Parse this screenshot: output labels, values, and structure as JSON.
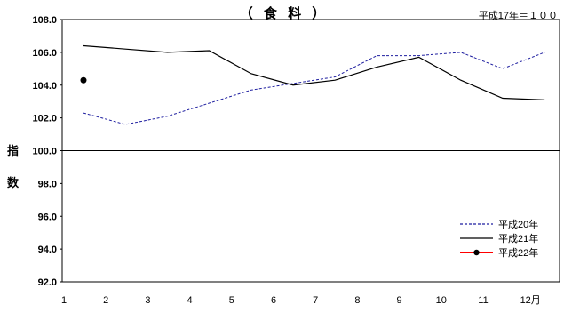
{
  "chart_data": {
    "type": "line",
    "title": "（ 食 料 ）",
    "note": "平成17年＝１００",
    "ylabel_top": "指",
    "ylabel_bottom": "数",
    "ylim": [
      92.0,
      108.0
    ],
    "yticks": [
      92.0,
      94.0,
      96.0,
      98.0,
      100.0,
      102.0,
      104.0,
      106.0,
      108.0
    ],
    "ytick_labels": [
      "92.0",
      "94.0",
      "96.0",
      "98.0",
      "100.0",
      "102.0",
      "104.0",
      "106.0",
      "108.0"
    ],
    "x": [
      1,
      2,
      3,
      4,
      5,
      6,
      7,
      8,
      9,
      10,
      11,
      12
    ],
    "xtick_labels": [
      "1",
      "2",
      "3",
      "4",
      "5",
      "6",
      "7",
      "8",
      "9",
      "10",
      "11",
      "12月"
    ],
    "reference_line": 100.0,
    "grid": false,
    "legend_position": "bottom-right",
    "series": [
      {
        "name": "平成20年",
        "color": "#1f1fa0",
        "style": "dashed",
        "values": [
          102.3,
          101.6,
          102.1,
          102.9,
          103.7,
          104.1,
          104.5,
          105.8,
          105.8,
          106.0,
          105.0,
          106.0
        ]
      },
      {
        "name": "平成21年",
        "color": "#000000",
        "style": "solid",
        "values": [
          106.4,
          106.2,
          106.0,
          106.1,
          104.7,
          104.0,
          104.3,
          105.1,
          105.7,
          104.3,
          103.2,
          103.1
        ]
      },
      {
        "name": "平成22年",
        "color": "#ff0000",
        "marker_color": "#000000",
        "style": "solid-marker",
        "values": [
          104.3,
          null,
          null,
          null,
          null,
          null,
          null,
          null,
          null,
          null,
          null,
          null
        ]
      }
    ]
  }
}
